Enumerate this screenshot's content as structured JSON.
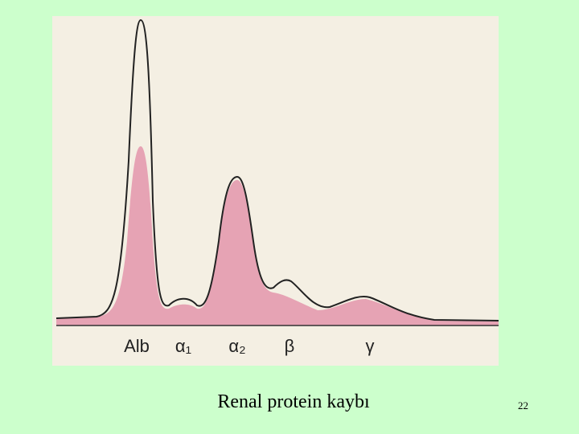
{
  "figure": {
    "labels": [
      "Alb",
      "α₁",
      "α₂",
      "β",
      "γ"
    ]
  },
  "caption": "Renal protein kaybı",
  "slide_number": "22"
}
